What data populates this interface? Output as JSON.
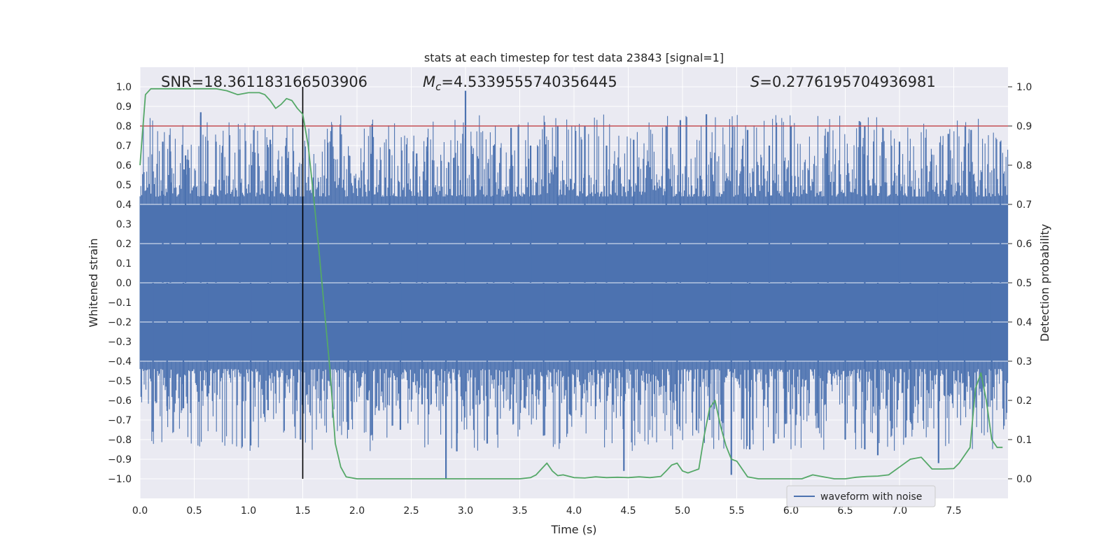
{
  "chart_data": {
    "type": "line",
    "title": "stats at each timestep for test data 23843 [signal=1]",
    "xlabel": "Time (s)",
    "ylabel_left": "Whitened strain",
    "ylabel_right": "Detection probability",
    "xlim": [
      0.0,
      8.0
    ],
    "ylim_left": [
      -1.1,
      1.1
    ],
    "ylim_right": [
      -0.05,
      1.05
    ],
    "x_ticks": [
      "0.0",
      "0.5",
      "1.0",
      "1.5",
      "2.0",
      "2.5",
      "3.0",
      "3.5",
      "4.0",
      "4.5",
      "5.0",
      "5.5",
      "6.0",
      "6.5",
      "7.0",
      "7.5"
    ],
    "y_left_ticks": [
      "1.0",
      "0.9",
      "0.8",
      "0.7",
      "0.6",
      "0.5",
      "0.4",
      "0.3",
      "0.2",
      "0.1",
      "0.0",
      "−0.1",
      "−0.2",
      "−0.3",
      "−0.4",
      "−0.5",
      "−0.6",
      "−0.7",
      "−0.8",
      "−0.9",
      "−1.0"
    ],
    "y_right_ticks": [
      "1.0",
      "0.9",
      "0.8",
      "0.7",
      "0.6",
      "0.5",
      "0.4",
      "0.3",
      "0.2",
      "0.1",
      "0.0"
    ],
    "grid": true,
    "annotations": {
      "snr": "SNR=18.361183166503906",
      "mc_symbol": "M",
      "mc_sub": "c",
      "mc_value": "=4.5339555740356445",
      "s_symbol": "S",
      "s_value": "=0.2776195704936981"
    },
    "legend": {
      "label": "waveform with noise",
      "position": "lower-right"
    },
    "threshold": {
      "axis": "right",
      "value": 0.9,
      "color": "#c44e52"
    },
    "event_marker": {
      "x": 1.5,
      "color": "#000000",
      "y_range": [
        -1.0,
        1.0
      ]
    },
    "waveform": {
      "name": "waveform with noise",
      "color": "#4c72b0",
      "x_range": [
        0.0,
        8.0
      ],
      "body_envelope": [
        -0.4,
        0.4
      ],
      "peak_spikes": [
        [
          0.56,
          0.87
        ],
        [
          0.21,
          0.72
        ],
        [
          0.28,
          0.67
        ],
        [
          0.42,
          0.65
        ],
        [
          0.7,
          0.72
        ],
        [
          0.92,
          0.68
        ],
        [
          1.2,
          0.73
        ],
        [
          1.36,
          0.6
        ],
        [
          2.14,
          0.81
        ],
        [
          2.3,
          0.68
        ],
        [
          2.55,
          0.66
        ],
        [
          2.65,
          0.67
        ],
        [
          3.0,
          0.98
        ],
        [
          3.26,
          0.7
        ],
        [
          3.42,
          0.79
        ],
        [
          3.6,
          0.7
        ],
        [
          3.85,
          0.8
        ],
        [
          4.1,
          0.8
        ],
        [
          4.3,
          0.7
        ],
        [
          4.55,
          0.73
        ],
        [
          4.85,
          0.8
        ],
        [
          4.98,
          0.83
        ],
        [
          5.22,
          0.86
        ],
        [
          5.6,
          0.78
        ],
        [
          5.8,
          0.7
        ],
        [
          6.0,
          0.8
        ],
        [
          6.34,
          0.77
        ],
        [
          6.68,
          0.8
        ],
        [
          7.0,
          0.72
        ],
        [
          7.45,
          0.76
        ],
        [
          7.66,
          0.78
        ],
        [
          7.93,
          0.72
        ]
      ],
      "trough_spikes": [
        [
          0.12,
          -0.76
        ],
        [
          0.25,
          -0.63
        ],
        [
          0.4,
          -0.64
        ],
        [
          0.62,
          -0.58
        ],
        [
          1.02,
          -0.83
        ],
        [
          1.18,
          -0.65
        ],
        [
          1.48,
          -0.8
        ],
        [
          1.92,
          -0.75
        ],
        [
          2.1,
          -0.6
        ],
        [
          2.4,
          -0.75
        ],
        [
          2.6,
          -0.62
        ],
        [
          2.82,
          -1.0
        ],
        [
          2.92,
          -0.86
        ],
        [
          3.2,
          -0.82
        ],
        [
          3.44,
          -0.72
        ],
        [
          3.72,
          -0.78
        ],
        [
          3.96,
          -0.67
        ],
        [
          4.2,
          -0.63
        ],
        [
          4.46,
          -0.96
        ],
        [
          4.72,
          -0.68
        ],
        [
          4.95,
          -0.72
        ],
        [
          5.25,
          -0.7
        ],
        [
          5.45,
          -0.98
        ],
        [
          5.62,
          -0.85
        ],
        [
          5.95,
          -0.72
        ],
        [
          6.25,
          -0.74
        ],
        [
          6.5,
          -0.8
        ],
        [
          6.68,
          -0.85
        ],
        [
          6.8,
          -0.88
        ],
        [
          7.1,
          -0.7
        ],
        [
          7.36,
          -0.92
        ],
        [
          7.6,
          -0.6
        ],
        [
          7.85,
          -0.6
        ]
      ]
    },
    "detection_probability": {
      "name": "Detection probability",
      "color": "#55a868",
      "x": [
        0.0,
        0.05,
        0.1,
        0.2,
        0.3,
        0.4,
        0.5,
        0.6,
        0.7,
        0.8,
        0.9,
        1.0,
        1.1,
        1.15,
        1.2,
        1.25,
        1.3,
        1.35,
        1.4,
        1.45,
        1.5,
        1.55,
        1.6,
        1.65,
        1.7,
        1.75,
        1.8,
        1.85,
        1.9,
        2.0,
        2.1,
        2.2,
        2.3,
        2.4,
        2.5,
        2.6,
        2.7,
        2.8,
        2.9,
        3.0,
        3.1,
        3.2,
        3.3,
        3.4,
        3.5,
        3.6,
        3.65,
        3.7,
        3.75,
        3.8,
        3.85,
        3.9,
        4.0,
        4.1,
        4.2,
        4.3,
        4.4,
        4.5,
        4.6,
        4.7,
        4.8,
        4.85,
        4.9,
        4.95,
        5.0,
        5.05,
        5.1,
        5.15,
        5.2,
        5.25,
        5.3,
        5.35,
        5.4,
        5.45,
        5.5,
        5.6,
        5.7,
        5.8,
        6.0,
        6.1,
        6.2,
        6.3,
        6.4,
        6.5,
        6.6,
        6.7,
        6.8,
        6.9,
        7.0,
        7.1,
        7.2,
        7.25,
        7.3,
        7.35,
        7.4,
        7.5,
        7.55,
        7.6,
        7.65,
        7.7,
        7.75,
        7.8,
        7.85,
        7.9,
        7.95
      ],
      "y": [
        0.8,
        0.98,
        0.995,
        0.995,
        0.995,
        0.995,
        0.995,
        0.995,
        0.995,
        0.99,
        0.98,
        0.985,
        0.985,
        0.98,
        0.965,
        0.945,
        0.955,
        0.97,
        0.965,
        0.945,
        0.93,
        0.85,
        0.72,
        0.58,
        0.43,
        0.28,
        0.09,
        0.03,
        0.005,
        0.0,
        0.0,
        0.0,
        0.0,
        0.0,
        0.0,
        0.0,
        0.0,
        0.0,
        0.0,
        0.0,
        0.0,
        0.0,
        0.0,
        0.0,
        0.0,
        0.003,
        0.01,
        0.025,
        0.04,
        0.02,
        0.008,
        0.01,
        0.003,
        0.002,
        0.005,
        0.003,
        0.004,
        0.003,
        0.005,
        0.003,
        0.006,
        0.02,
        0.035,
        0.04,
        0.02,
        0.015,
        0.02,
        0.025,
        0.11,
        0.18,
        0.2,
        0.135,
        0.085,
        0.05,
        0.045,
        0.005,
        0.0,
        0.0,
        0.0,
        0.0,
        0.01,
        0.005,
        0.0,
        0.0,
        0.004,
        0.006,
        0.007,
        0.01,
        0.03,
        0.05,
        0.055,
        0.04,
        0.025,
        0.025,
        0.025,
        0.026,
        0.04,
        0.06,
        0.08,
        0.23,
        0.27,
        0.2,
        0.1,
        0.08,
        0.08
      ]
    }
  }
}
